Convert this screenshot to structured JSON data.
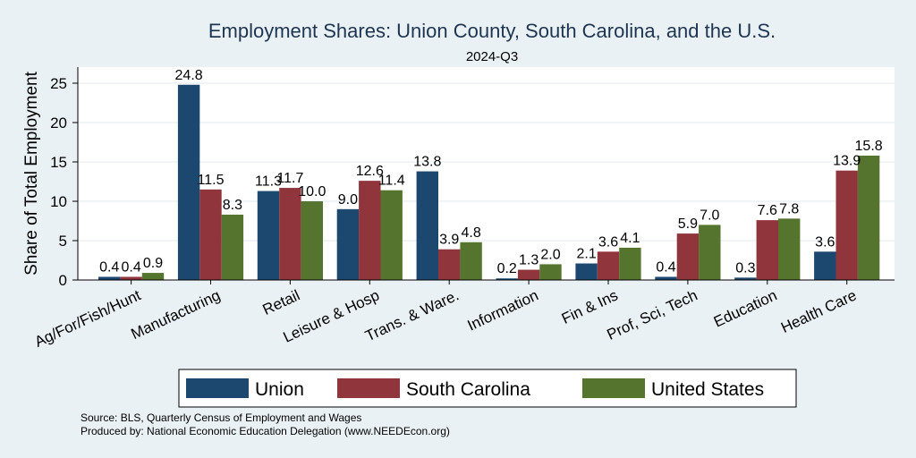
{
  "chart_data": {
    "type": "bar",
    "title": "Employment Shares: Union County, South Carolina, and the U.S.",
    "subtitle": "2024-Q3",
    "xlabel": "",
    "ylabel": "Share of Total Employment",
    "ylim": [
      0,
      27
    ],
    "yticks": [
      0,
      5,
      10,
      15,
      20,
      25
    ],
    "grid": true,
    "legend_position": "bottom",
    "categories": [
      "Ag/For/Fish/Hunt",
      "Manufacturing",
      "Retail",
      "Leisure & Hosp",
      "Trans. & Ware.",
      "Information",
      "Fin & Ins",
      "Prof, Sci, Tech",
      "Education",
      "Health Care"
    ],
    "series": [
      {
        "name": "Union",
        "color": "#1c4870",
        "values": [
          0.4,
          24.8,
          11.3,
          9.0,
          13.8,
          0.2,
          2.1,
          0.4,
          0.3,
          3.6
        ]
      },
      {
        "name": "South Carolina",
        "color": "#90353c",
        "values": [
          0.4,
          11.5,
          11.7,
          12.6,
          3.9,
          1.3,
          3.6,
          5.9,
          7.6,
          13.9
        ]
      },
      {
        "name": "United States",
        "color": "#55752f",
        "values": [
          0.9,
          8.3,
          10.0,
          11.4,
          4.8,
          2.0,
          4.1,
          7.0,
          7.8,
          15.8
        ]
      }
    ]
  },
  "notes": {
    "source": "Source: BLS, Quarterly Census of Employment and Wages",
    "produced_by": "Produced by: National Economic Education Delegation (www.NEEDEcon.org)"
  }
}
